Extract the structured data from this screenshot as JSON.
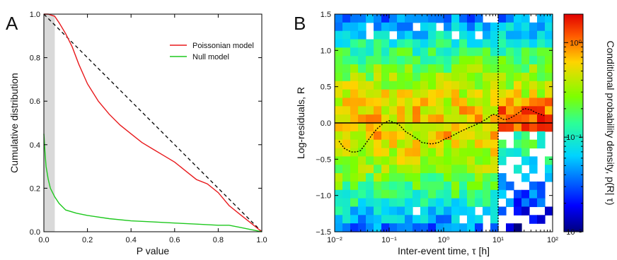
{
  "panels": {
    "a": "A",
    "b": "B"
  },
  "chart_data": [
    {
      "type": "line",
      "xlabel": "P value",
      "ylabel": "Cumulative distribution",
      "xlim": [
        0,
        1
      ],
      "ylim": [
        0,
        1
      ],
      "xticks": [
        "0.0",
        "0.2",
        "0.4",
        "0.6",
        "0.8",
        "1.0"
      ],
      "yticks": [
        "0.0",
        "0.2",
        "0.4",
        "0.6",
        "0.8",
        "1.0"
      ],
      "shaded_region": [
        0,
        0.05
      ],
      "shaded_color": "#d9d9d9",
      "legend_position": "top-right",
      "series": [
        {
          "name": "Poissonian model",
          "color": "#e8191c",
          "x": [
            0.0,
            0.02,
            0.05,
            0.07,
            0.1,
            0.13,
            0.16,
            0.2,
            0.25,
            0.3,
            0.35,
            0.4,
            0.45,
            0.5,
            0.55,
            0.6,
            0.65,
            0.7,
            0.75,
            0.8,
            0.85,
            0.9,
            0.95,
            1.0
          ],
          "y": [
            1.0,
            1.0,
            0.99,
            0.96,
            0.91,
            0.85,
            0.77,
            0.68,
            0.6,
            0.54,
            0.49,
            0.45,
            0.41,
            0.38,
            0.35,
            0.32,
            0.28,
            0.24,
            0.22,
            0.18,
            0.12,
            0.08,
            0.04,
            0.0
          ]
        },
        {
          "name": "Null model",
          "color": "#1ec81e",
          "x": [
            0.0,
            0.005,
            0.01,
            0.02,
            0.03,
            0.05,
            0.07,
            0.1,
            0.15,
            0.2,
            0.3,
            0.4,
            0.5,
            0.6,
            0.7,
            0.8,
            0.85,
            0.9,
            0.95,
            1.0
          ],
          "y": [
            0.45,
            0.37,
            0.3,
            0.24,
            0.2,
            0.16,
            0.13,
            0.1,
            0.085,
            0.075,
            0.06,
            0.05,
            0.045,
            0.04,
            0.035,
            0.03,
            0.03,
            0.02,
            0.01,
            0.0
          ]
        },
        {
          "name": "",
          "color": "#000000",
          "style": "dashed",
          "x": [
            0,
            1
          ],
          "y": [
            1,
            0
          ]
        }
      ]
    },
    {
      "type": "heatmap",
      "xlabel": "Inter-event time, τ [h]",
      "ylabel": "Log-residuals, R",
      "x_scale": "log",
      "xlim": [
        0.01,
        100
      ],
      "ylim": [
        -1.5,
        1.5
      ],
      "xticks": [
        "10⁻²",
        "10⁻¹",
        "10⁰",
        "10¹",
        "10²"
      ],
      "yticks": [
        "−1.5",
        "−1.0",
        "−0.5",
        "0.0",
        "0.5",
        "1.0",
        "1.5"
      ],
      "vline_x": 10,
      "hline_y": 0.0,
      "colorbar": {
        "label": "Conditional probability density, p(R| τ)",
        "scale": "log",
        "range": [
          0.01,
          2
        ],
        "ticks": [
          "10⁻²",
          "10⁻¹",
          "10⁰"
        ]
      },
      "dotted_curve": {
        "x": [
          0.012,
          0.015,
          0.02,
          0.025,
          0.03,
          0.04,
          0.05,
          0.06,
          0.08,
          0.1,
          0.15,
          0.2,
          0.3,
          0.4,
          0.6,
          0.8,
          1.0,
          1.5,
          2,
          3,
          4,
          6,
          8,
          10,
          12,
          15,
          20,
          25,
          30,
          40,
          50,
          60,
          70
        ],
        "y": [
          -0.25,
          -0.35,
          -0.4,
          -0.4,
          -0.38,
          -0.25,
          -0.15,
          -0.08,
          0.0,
          0.03,
          -0.02,
          -0.12,
          -0.2,
          -0.27,
          -0.29,
          -0.27,
          -0.23,
          -0.17,
          -0.12,
          -0.06,
          -0.02,
          0.05,
          0.12,
          0.1,
          0.05,
          0.05,
          0.1,
          0.15,
          0.2,
          0.18,
          0.14,
          0.12,
          0.1
        ]
      }
    }
  ]
}
